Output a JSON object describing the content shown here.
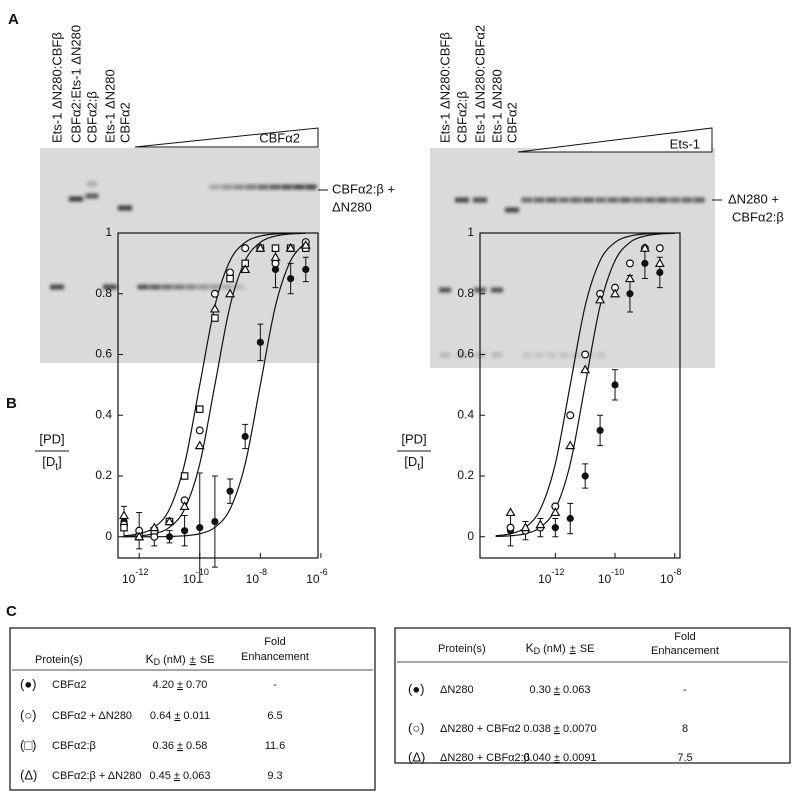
{
  "panels": [
    "A",
    "B",
    "C"
  ],
  "gels": [
    {
      "lanes": [
        "Ets-1 ΔN280:CBFβ",
        "CBFα2:Ets-1 ΔN280",
        "CBFα2:β",
        "Ets-1 ΔN280",
        "CBFα2"
      ],
      "titrant": "CBFα2",
      "band_label": [
        "CBFα2:β +",
        "ΔN280"
      ]
    },
    {
      "lanes": [
        "Ets-1 ΔN280:CBFβ",
        "CBFα2:β",
        "Ets-1 ΔN280:CBFα2",
        "Ets-1 ΔN280",
        "CBFα2"
      ],
      "titrant": "Ets-1",
      "band_label": [
        "ΔN280 +",
        "CBFα2:β"
      ]
    }
  ],
  "chart_data": [
    {
      "type": "scatter",
      "xscale": "log",
      "ylabel": {
        "num": "[PD]",
        "den": "[D",
        "sub": "t",
        "close": "]"
      },
      "xlim": [
        2e-13,
        8e-07
      ],
      "ylim": [
        -0.07,
        1.0
      ],
      "xticks": [
        {
          "value": 1e-12,
          "label": "10",
          "exponent": "-12"
        },
        {
          "value": 1e-10,
          "label": "10",
          "exponent": "-10"
        },
        {
          "value": 1e-08,
          "label": "10",
          "exponent": "-8"
        },
        {
          "value": 1e-06,
          "label": "10",
          "exponent": "-6"
        }
      ],
      "yticks": [
        0,
        0.2,
        0.4,
        0.6,
        0.8,
        1
      ],
      "series": [
        {
          "marker": "filled-circle",
          "color": "#111111",
          "x": [
            3.16e-13,
            1e-12,
            3.16e-12,
            1e-11,
            3.16e-11,
            1e-10,
            3.16e-10,
            1e-09,
            3.16e-09,
            1e-08,
            3.16e-08,
            1e-07,
            3.16e-07
          ],
          "values": [
            0.05,
            0.02,
            0.0,
            0.0,
            0.02,
            0.03,
            0.05,
            0.15,
            0.33,
            0.64,
            0.88,
            0.85,
            0.88
          ],
          "errors": [
            0.05,
            0.06,
            0.03,
            0.02,
            0.05,
            0.18,
            0.15,
            0.04,
            0.04,
            0.06,
            0.06,
            0.05,
            0.04
          ]
        },
        {
          "marker": "circle",
          "color": "#111111",
          "x": [
            3.16e-13,
            1e-12,
            3.16e-12,
            1e-11,
            3.16e-11,
            1e-10,
            3.16e-10,
            1e-09,
            3.16e-09,
            1e-08,
            3.16e-08,
            1e-07,
            3.16e-07
          ],
          "values": [
            0.04,
            0.02,
            0.0,
            0.05,
            0.12,
            0.35,
            0.8,
            0.87,
            0.95,
            0.95,
            0.9,
            0.95,
            0.97
          ]
        },
        {
          "marker": "square",
          "color": "#111111",
          "x": [
            3.16e-13,
            1e-12,
            3.16e-12,
            1e-11,
            3.16e-11,
            1e-10,
            3.16e-10,
            1e-09,
            3.16e-09,
            1e-08,
            3.16e-08,
            1e-07,
            3.16e-07
          ],
          "values": [
            0.03,
            0.0,
            0.02,
            0.05,
            0.2,
            0.42,
            0.72,
            0.85,
            0.9,
            0.95,
            0.95,
            0.95,
            0.95
          ]
        },
        {
          "marker": "triangle",
          "color": "#111111",
          "x": [
            3.16e-13,
            1e-12,
            3.16e-12,
            1e-11,
            3.16e-11,
            1e-10,
            3.16e-10,
            1e-09,
            3.16e-09,
            1e-08,
            3.16e-08,
            1e-07,
            3.16e-07
          ],
          "values": [
            0.07,
            0.0,
            0.03,
            0.05,
            0.1,
            0.3,
            0.75,
            0.8,
            0.88,
            0.95,
            0.92,
            0.95,
            0.96
          ]
        }
      ],
      "curve_x": [
        3.16e-13,
        1e-12,
        3.16e-12,
        1e-11,
        3.16e-11,
        1e-10,
        3.16e-10,
        1e-09,
        3.16e-09,
        1e-08,
        3.16e-08,
        1e-07,
        3.16e-07
      ],
      "curves": [
        {
          "values": [
            0.003,
            0.0099,
            0.031,
            0.091,
            0.24,
            0.5,
            0.76,
            0.909,
            0.969,
            0.99,
            0.997,
            0.999,
            1
          ]
        },
        {
          "values": [
            0.001,
            0.003,
            0.0099,
            0.031,
            0.091,
            0.24,
            0.5,
            0.76,
            0.909,
            0.969,
            0.99,
            0.997,
            0.999
          ]
        },
        {
          "values": [
            0,
            0,
            0,
            0.001,
            0.003,
            0.0099,
            0.031,
            0.091,
            0.24,
            0.5,
            0.76,
            0.909,
            0.969
          ]
        }
      ]
    },
    {
      "type": "scatter",
      "xscale": "log",
      "ylabel": {
        "num": "[PD]",
        "den": "[D",
        "sub": "t",
        "close": "]"
      },
      "xlim": [
        3e-15,
        1.5e-08
      ],
      "ylim": [
        -0.07,
        1.0
      ],
      "xticks": [
        {
          "value": 1e-12,
          "label": "10",
          "exponent": "-12"
        },
        {
          "value": 1e-10,
          "label": "10",
          "exponent": "-10"
        },
        {
          "value": 1e-08,
          "label": "10",
          "exponent": "-8"
        }
      ],
      "yticks": [
        0,
        0.2,
        0.4,
        0.6,
        0.8,
        1
      ],
      "series": [
        {
          "marker": "filled-circle",
          "color": "#111111",
          "x": [
            3.16e-14,
            1e-13,
            3.16e-13,
            1e-12,
            3.16e-12,
            1e-11,
            3.16e-11,
            1e-10,
            3.16e-10,
            1e-09,
            3.16e-09
          ],
          "values": [
            0.02,
            0.02,
            0.03,
            0.03,
            0.06,
            0.2,
            0.35,
            0.5,
            0.8,
            0.9,
            0.87
          ],
          "errors": [
            0.05,
            0.03,
            0.03,
            0.03,
            0.05,
            0.04,
            0.05,
            0.05,
            0.06,
            0.05,
            0.05
          ]
        },
        {
          "marker": "circle",
          "color": "#111111",
          "x": [
            3.16e-14,
            1e-13,
            3.16e-13,
            1e-12,
            3.16e-12,
            1e-11,
            3.16e-11,
            1e-10,
            3.16e-10,
            1e-09,
            3.16e-09
          ],
          "values": [
            0.03,
            0.02,
            0.03,
            0.1,
            0.4,
            0.6,
            0.8,
            0.82,
            0.9,
            0.95,
            0.95
          ]
        },
        {
          "marker": "triangle",
          "color": "#111111",
          "x": [
            3.16e-14,
            1e-13,
            3.16e-13,
            1e-12,
            3.16e-12,
            1e-11,
            3.16e-11,
            1e-10,
            3.16e-10,
            1e-09,
            3.16e-09
          ],
          "values": [
            0.08,
            0.03,
            0.04,
            0.08,
            0.3,
            0.55,
            0.78,
            0.8,
            0.85,
            0.95,
            0.9
          ]
        }
      ],
      "curve_x": [
        1e-14,
        3.16e-14,
        1e-13,
        3.16e-13,
        1e-12,
        3.16e-12,
        1e-11,
        3.16e-11,
        1e-10,
        3.16e-10,
        1e-09,
        3.16e-09,
        1e-08
      ],
      "curves": [
        {
          "values": [
            0.003,
            0.0099,
            0.031,
            0.091,
            0.24,
            0.5,
            0.76,
            0.909,
            0.969,
            0.99,
            0.997,
            0.999,
            1
          ]
        },
        {
          "values": [
            0.001,
            0.003,
            0.0099,
            0.031,
            0.091,
            0.24,
            0.5,
            0.76,
            0.909,
            0.969,
            0.99,
            0.997,
            0.999
          ]
        }
      ]
    }
  ],
  "tables": [
    {
      "header": {
        "protein": "Protein(s)",
        "k": "K",
        "k_sub": "D",
        "unit": "(nM)",
        "pm": "±",
        "se": "SE",
        "fold": [
          "Fold",
          "Enhancement"
        ]
      },
      "rows": [
        {
          "symbol": "(●)",
          "protein": "CBFα2",
          "kd": "4.20",
          "se": "0.70",
          "fold": "-"
        },
        {
          "symbol": "(○)",
          "protein": "CBFα2 + ΔN280",
          "kd": "0.64",
          "se": "0.011",
          "fold": "6.5"
        },
        {
          "symbol": "(□)",
          "protein": "CBFα2:β",
          "kd": "0.36",
          "se": "0.58",
          "fold": "11.6"
        },
        {
          "symbol": "(Δ)",
          "protein": "CBFα2:β + ΔN280",
          "kd": "0.45",
          "se": "0.063",
          "fold": "9.3"
        }
      ]
    },
    {
      "header": {
        "protein": "Protein(s)",
        "k": "K",
        "k_sub": "D",
        "unit": "(nM)",
        "pm": "±",
        "se": "SE",
        "fold": [
          "Fold",
          "Enhancement"
        ]
      },
      "rows": [
        {
          "symbol": "(●)",
          "protein": "ΔN280",
          "kd": "0.30",
          "se": "0.063",
          "fold": "-"
        },
        {
          "symbol": "(○)",
          "protein": "ΔN280 + CBFα2",
          "kd": "0.038",
          "se": "0.0070",
          "fold": "8"
        },
        {
          "symbol": "(Δ)",
          "protein": "ΔN280 + CBFα2:β",
          "kd": "0.040",
          "se": "0.0091",
          "fold": "7.5"
        }
      ]
    }
  ]
}
